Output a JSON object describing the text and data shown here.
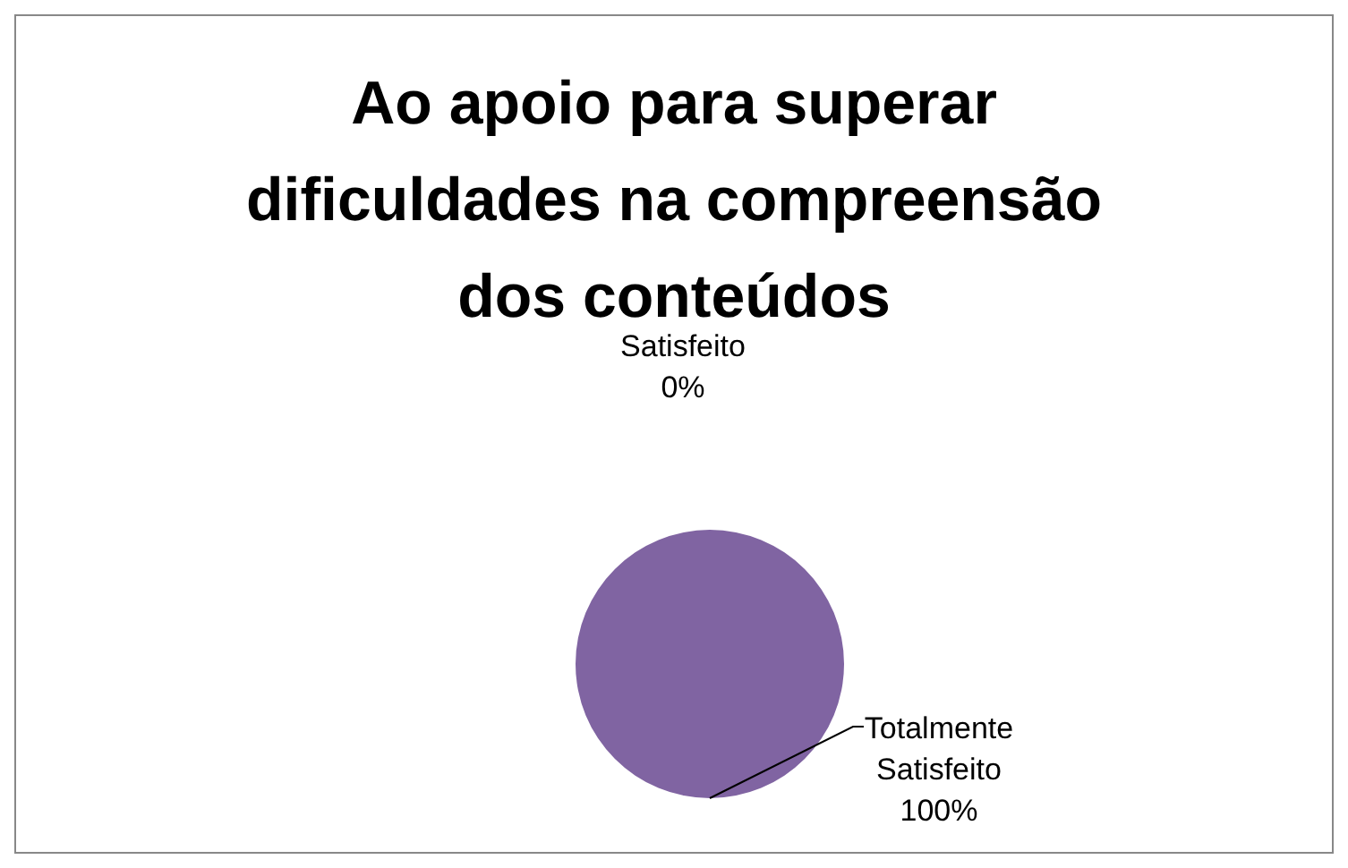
{
  "chart_data": {
    "type": "pie",
    "title": "Ao apoio para superar dificuldades na compreensão dos conteúdos",
    "categories": [
      "Satisfeito",
      "Totalmente Satisfeito"
    ],
    "values": [
      0,
      100
    ],
    "colors": [
      "#4f81bd",
      "#8064a2"
    ],
    "value_labels": [
      "0%",
      "100%"
    ],
    "legend": false
  }
}
